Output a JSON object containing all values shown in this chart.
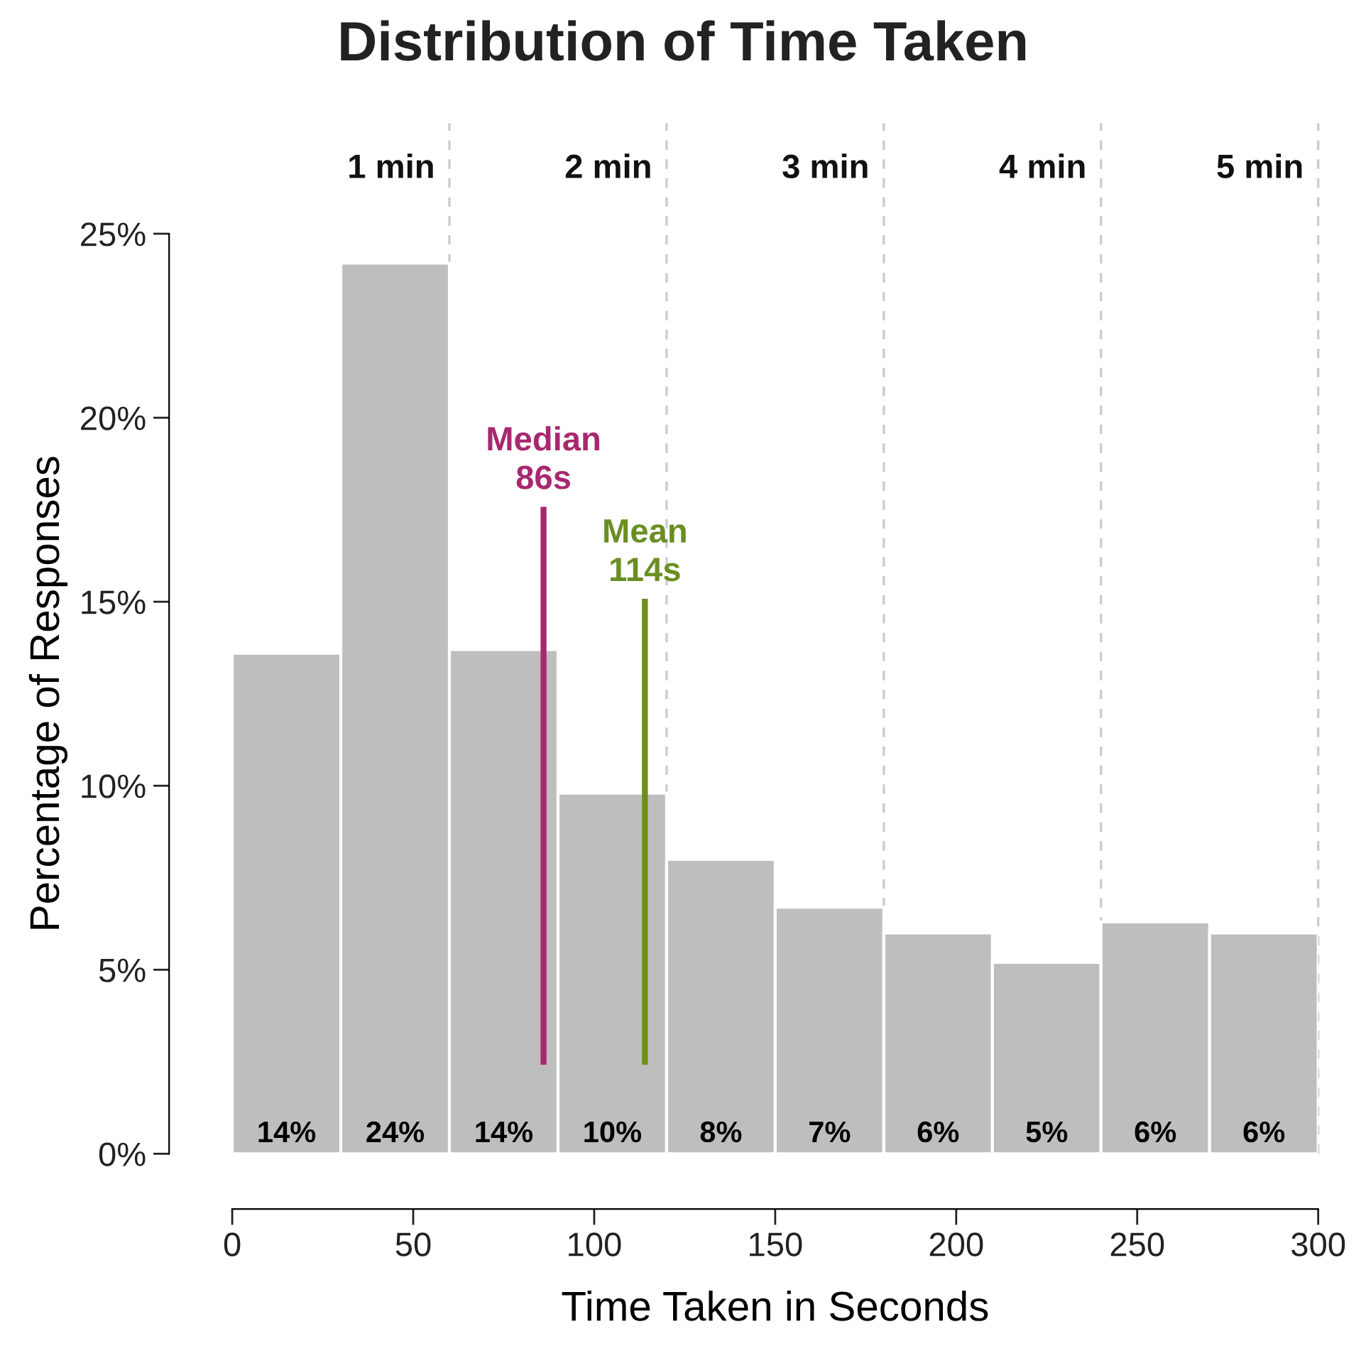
{
  "chart_data": {
    "type": "histogram",
    "title": "Distribution of Time Taken",
    "xlabel": "Time Taken in Seconds",
    "ylabel": "Percentage of Responses",
    "bins": [
      0,
      30,
      60,
      90,
      120,
      150,
      180,
      210,
      240,
      270,
      300
    ],
    "values": [
      13.6,
      24.2,
      13.7,
      9.8,
      8.0,
      6.7,
      6.0,
      5.2,
      6.3,
      6.0
    ],
    "value_labels": [
      "14%",
      "24%",
      "14%",
      "10%",
      "8%",
      "7%",
      "6%",
      "5%",
      "6%",
      "6%"
    ],
    "color": "#bebebe",
    "xlim": [
      0,
      300
    ],
    "xticks": [
      0,
      50,
      100,
      150,
      200,
      250,
      300
    ],
    "ylim": [
      0,
      25
    ],
    "yticks": [
      {
        "value": 0,
        "label": "0%"
      },
      {
        "value": 5,
        "label": "5%"
      },
      {
        "value": 10,
        "label": "10%"
      },
      {
        "value": 15,
        "label": "15%"
      },
      {
        "value": 20,
        "label": "20%"
      },
      {
        "value": 25,
        "label": "25%"
      }
    ],
    "grid": false,
    "ref_lines": [
      {
        "axis": "x",
        "value": 60,
        "label": "1 min",
        "color": "#cccccc",
        "line_style": "dashed"
      },
      {
        "axis": "x",
        "value": 120,
        "label": "2 min",
        "color": "#cccccc",
        "line_style": "dashed"
      },
      {
        "axis": "x",
        "value": 180,
        "label": "3 min",
        "color": "#cccccc",
        "line_style": "dashed"
      },
      {
        "axis": "x",
        "value": 240,
        "label": "4 min",
        "color": "#cccccc",
        "line_style": "dashed"
      },
      {
        "axis": "x",
        "value": 300,
        "label": "5 min",
        "color": "#cccccc",
        "line_style": "dashed"
      },
      {
        "axis": "x",
        "value": 86,
        "label": "Median\n86s",
        "color": "#a8286f",
        "line_style": "solid"
      },
      {
        "axis": "x",
        "value": 114,
        "label": "Mean\n114s",
        "color": "#6b8e23",
        "line_style": "solid"
      }
    ]
  }
}
